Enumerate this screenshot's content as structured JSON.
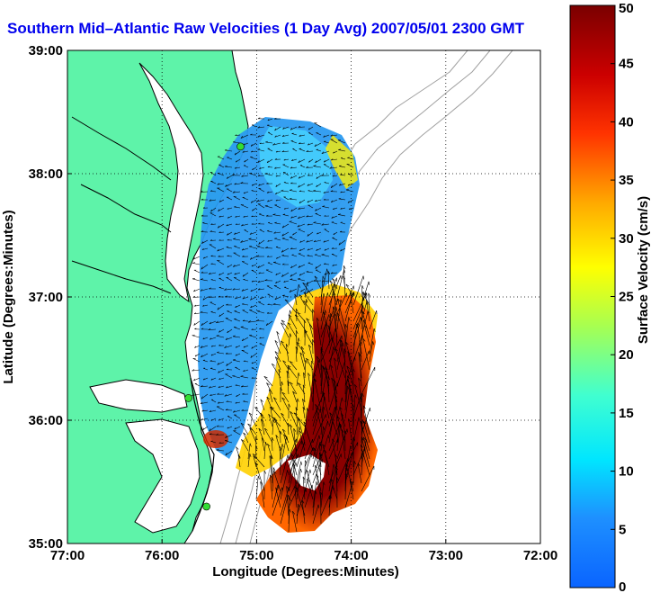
{
  "title": "Southern Mid–Atlantic Raw Velocities (1 Day Avg) 2007/05/01 2300 GMT",
  "colors": {
    "land": "#5ef3a9",
    "water": "#ffffff",
    "coastline": "#000000",
    "bathymetry": "#a0a0a0",
    "station": "#33dd33",
    "title": "#0000ee"
  },
  "map": {
    "x_axis": {
      "label": "Longitude (Degrees:Minutes)",
      "range_deg_west": [
        77,
        72
      ],
      "ticks": [
        "77:00",
        "76:00",
        "75:00",
        "74:00",
        "73:00",
        "72:00"
      ]
    },
    "y_axis": {
      "label": "Latitude (Degrees:Minutes)",
      "range_deg_north": [
        35,
        39
      ],
      "ticks": [
        "35:00",
        "36:00",
        "37:00",
        "38:00",
        "39:00"
      ]
    },
    "grid": "dotted",
    "stations": [
      {
        "lon": -75.17,
        "lat": 38.22
      },
      {
        "lon": -75.72,
        "lat": 36.18
      },
      {
        "lon": -75.53,
        "lat": 35.3
      }
    ]
  },
  "colorbar": {
    "label": "Surface Velocity (cm/s)",
    "min": 0,
    "max": 50,
    "ticks": [
      "0",
      "5",
      "10",
      "15",
      "20",
      "25",
      "30",
      "35",
      "40",
      "45",
      "50"
    ]
  }
}
